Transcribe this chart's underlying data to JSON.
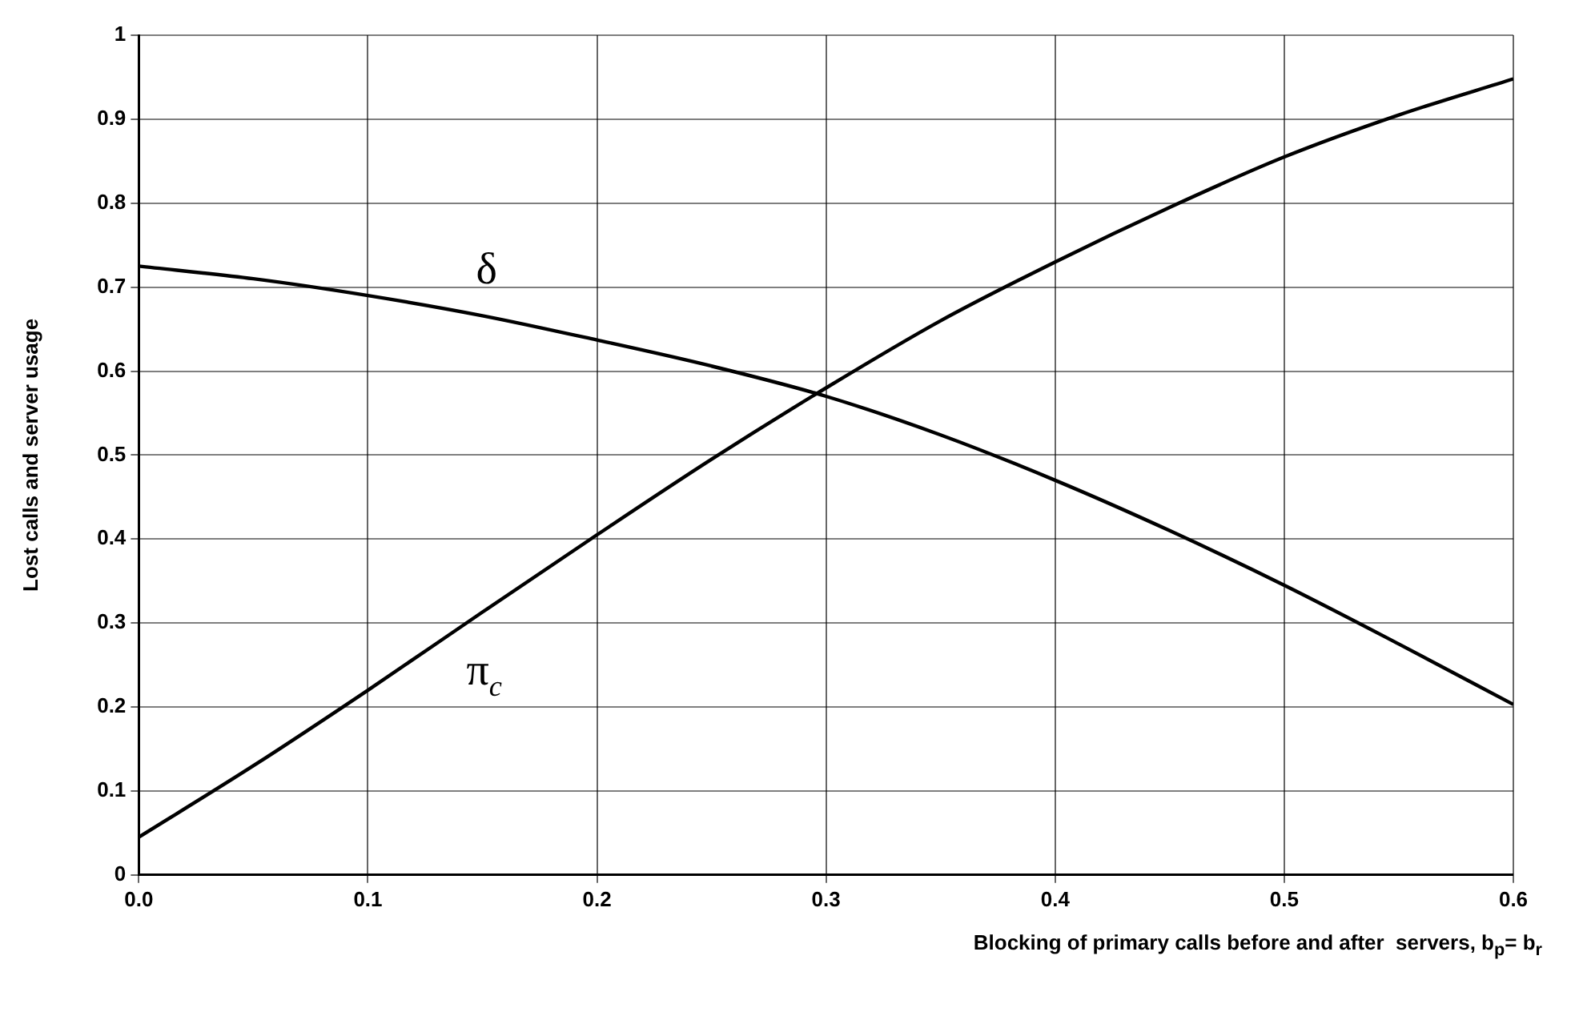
{
  "chart_data": {
    "type": "line",
    "xlabel": "Blocking of primary calls before and after  servers, b$_{p}$= b$_{r}$",
    "ylabel": "Lost calls and server usage",
    "x": [
      0,
      0.05,
      0.1,
      0.15,
      0.2,
      0.25,
      0.3,
      0.35,
      0.4,
      0.45,
      0.5,
      0.55,
      0.6
    ],
    "series": [
      {
        "name": "δ",
        "color": "#000000",
        "values": [
          0.725,
          0.71,
          0.69,
          0.666,
          0.637,
          0.606,
          0.57,
          0.524,
          0.47,
          0.41,
          0.345,
          0.275,
          0.203
        ]
      },
      {
        "name": "π$_{c}$",
        "color": "#000000",
        "values": [
          0.045,
          0.13,
          0.22,
          0.313,
          0.405,
          0.495,
          0.58,
          0.66,
          0.73,
          0.795,
          0.855,
          0.905,
          0.948
        ]
      }
    ],
    "xlim": [
      0,
      0.6
    ],
    "xticks": [
      {
        "value": 0,
        "label": "0.0"
      },
      0.1,
      0.2,
      0.3,
      0.4,
      0.5,
      0.6
    ],
    "ylim": [
      0,
      1
    ],
    "yticks": [
      0,
      0.1,
      0.2,
      0.3,
      0.4,
      0.5,
      0.6,
      0.7,
      0.8,
      0.9,
      1
    ],
    "grid": true,
    "legend": false,
    "marker": "none",
    "line_style": "solid"
  }
}
